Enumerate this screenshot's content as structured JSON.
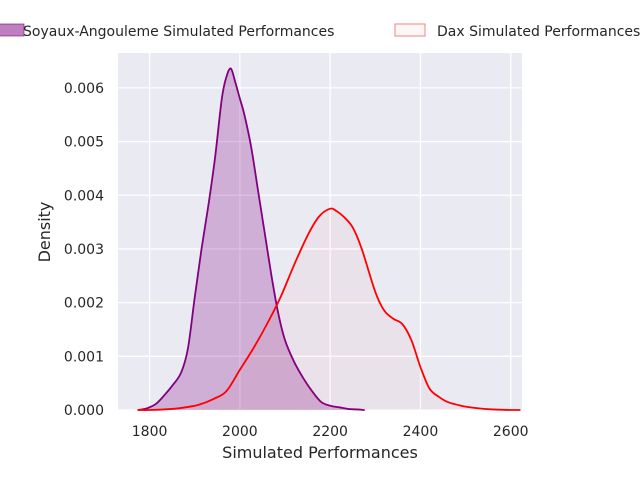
{
  "chart_data": {
    "type": "area",
    "title": "",
    "xlabel": "Simulated Performances",
    "ylabel": "Density",
    "xlim": [
      1730,
      2625
    ],
    "ylim": [
      0,
      0.00665
    ],
    "grid": true,
    "legend_position": "top-center",
    "x_ticks": [
      {
        "value": 1800,
        "label": "1800"
      },
      {
        "value": 2000,
        "label": "2000"
      },
      {
        "value": 2200,
        "label": "2200"
      },
      {
        "value": 2400,
        "label": "2400"
      },
      {
        "value": 2600,
        "label": "2600"
      }
    ],
    "y_ticks": [
      {
        "value": 0.0,
        "label": "0.000"
      },
      {
        "value": 0.001,
        "label": "0.001"
      },
      {
        "value": 0.002,
        "label": "0.002"
      },
      {
        "value": 0.003,
        "label": "0.003"
      },
      {
        "value": 0.004,
        "label": "0.004"
      },
      {
        "value": 0.005,
        "label": "0.005"
      },
      {
        "value": 0.006,
        "label": "0.006"
      }
    ],
    "series": [
      {
        "name": "Soyaux-Angouleme Simulated Performances",
        "color": "#800080",
        "fill_color": "#800080",
        "fill_opacity": 0.25,
        "x": [
          1775,
          1790,
          1800,
          1815,
          1830,
          1850,
          1870,
          1885,
          1900,
          1915,
          1930,
          1945,
          1960,
          1970,
          1980,
          1990,
          2000,
          2010,
          2025,
          2040,
          2055,
          2070,
          2085,
          2100,
          2120,
          2140,
          2160,
          2180,
          2200,
          2220,
          2240,
          2260,
          2275
        ],
        "y": [
          0.0,
          2e-05,
          5e-05,
          0.00012,
          0.00025,
          0.00045,
          0.0007,
          0.00115,
          0.0021,
          0.003,
          0.0038,
          0.0047,
          0.0058,
          0.0062,
          0.00636,
          0.0061,
          0.0058,
          0.0055,
          0.0049,
          0.0041,
          0.0033,
          0.0025,
          0.0018,
          0.0013,
          0.0009,
          0.0006,
          0.00035,
          0.00015,
          8e-05,
          5e-05,
          2e-05,
          1e-05,
          0.0
        ]
      },
      {
        "name": "Dax Simulated Performances",
        "color": "#ff0000",
        "fill_color": "#ff0000",
        "fill_opacity": 0.03,
        "x": [
          1775,
          1800,
          1850,
          1880,
          1910,
          1940,
          1970,
          2000,
          2030,
          2060,
          2090,
          2120,
          2150,
          2175,
          2200,
          2215,
          2230,
          2250,
          2270,
          2300,
          2320,
          2340,
          2360,
          2380,
          2400,
          2420,
          2440,
          2460,
          2490,
          2520,
          2560,
          2600,
          2620
        ],
        "y": [
          0.0,
          0.0,
          2e-05,
          5e-05,
          0.0001,
          0.0002,
          0.00035,
          0.00075,
          0.00115,
          0.0016,
          0.0021,
          0.0027,
          0.00325,
          0.0036,
          0.00375,
          0.0037,
          0.0036,
          0.0034,
          0.003,
          0.0022,
          0.00185,
          0.0017,
          0.0016,
          0.0013,
          0.0008,
          0.0004,
          0.00025,
          0.00015,
          8e-05,
          4e-05,
          1e-05,
          0.0,
          0.0
        ]
      }
    ]
  }
}
